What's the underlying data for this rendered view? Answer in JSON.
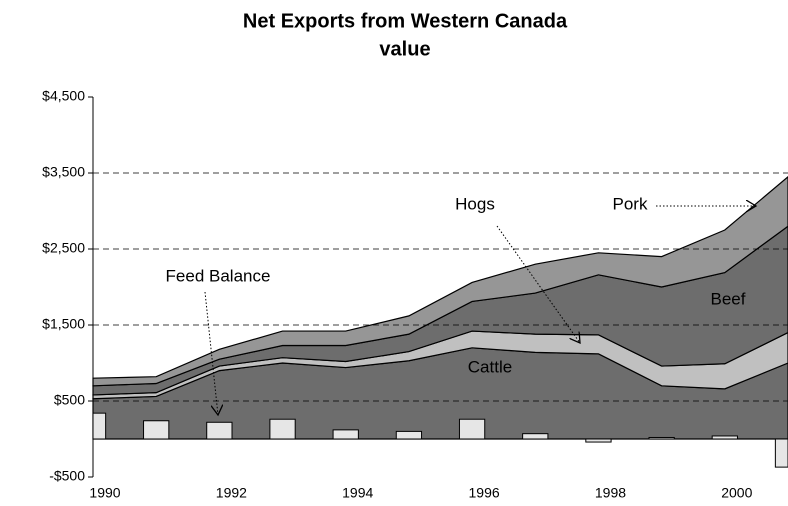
{
  "chart_data": {
    "type": "stacked-area-bar",
    "title": "Net Exports from Western Canada",
    "subtitle": "value",
    "categories": [
      "1990",
      null,
      "1992",
      null,
      "1994",
      null,
      "1996",
      null,
      "1998",
      null,
      "2000",
      null
    ],
    "series": [
      {
        "name": "Cattle",
        "color": "#6d6d6d",
        "values": [
          530,
          560,
          900,
          1000,
          940,
          1030,
          1200,
          1140,
          1120,
          700,
          660,
          1000
        ]
      },
      {
        "name": "Hogs",
        "color": "#c0c0c0",
        "values": [
          50,
          50,
          60,
          70,
          80,
          120,
          220,
          240,
          250,
          260,
          330,
          400
        ]
      },
      {
        "name": "Beef",
        "color": "#6d6d6d",
        "values": [
          120,
          120,
          90,
          160,
          210,
          230,
          390,
          540,
          790,
          1040,
          1200,
          1400
        ]
      },
      {
        "name": "Pork",
        "color": "#969696",
        "values": [
          100,
          90,
          130,
          190,
          190,
          240,
          250,
          380,
          290,
          400,
          560,
          650
        ]
      },
      {
        "name": "Feed Balance",
        "color": "#e6e6e6",
        "values": [
          340,
          240,
          220,
          260,
          120,
          100,
          260,
          70,
          -40,
          20,
          40,
          -370
        ]
      }
    ],
    "ylim": [
      -500,
      4500
    ],
    "yticks": [
      {
        "value": -500,
        "label": "-$500"
      },
      {
        "value": 500,
        "label": "$500"
      },
      {
        "value": 1500,
        "label": "$1,500"
      },
      {
        "value": 2500,
        "label": "$2,500"
      },
      {
        "value": 3500,
        "label": "$3,500"
      },
      {
        "value": 4500,
        "label": "$4,500"
      }
    ],
    "grid": true
  }
}
